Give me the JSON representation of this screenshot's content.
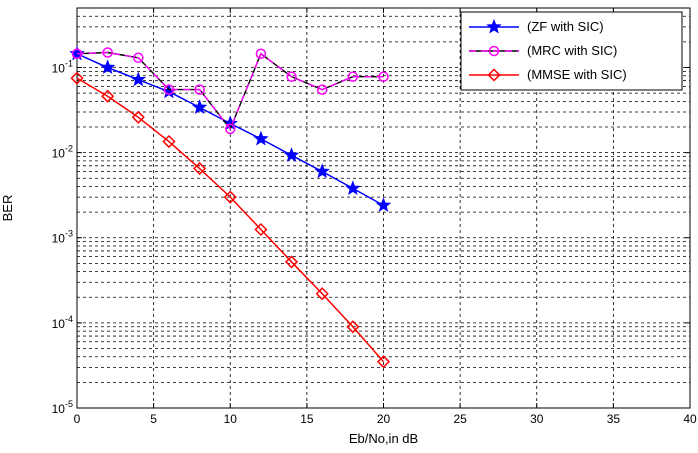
{
  "chart_data": {
    "type": "line",
    "title": "",
    "xlabel": "Eb/No,in dB",
    "ylabel": "BER",
    "xlim": [
      0,
      40
    ],
    "ylim": [
      1e-05,
      0.5
    ],
    "yscale": "log",
    "grid": true,
    "legend_position": "top-right",
    "x_ticks": [
      0,
      5,
      10,
      15,
      20,
      25,
      30,
      35,
      40
    ],
    "x_tick_labels": [
      "0",
      "5",
      "10",
      "15",
      "20",
      "25",
      "30",
      "35",
      "40"
    ],
    "y_ticks": [
      1e-05,
      0.0001,
      0.001,
      0.01,
      0.1
    ],
    "y_tick_labels": [
      {
        "base": "10",
        "exp": "-5"
      },
      {
        "base": "10",
        "exp": "-4"
      },
      {
        "base": "10",
        "exp": "-3"
      },
      {
        "base": "10",
        "exp": "-2"
      },
      {
        "base": "10",
        "exp": "-1"
      }
    ],
    "series": [
      {
        "name": "(ZF with SIC)",
        "color": "#0000ff",
        "line_style": "solid",
        "marker": "star",
        "x": [
          0,
          2,
          4,
          6,
          8,
          10,
          12,
          14,
          16,
          18,
          20
        ],
        "y": [
          0.145,
          0.1,
          0.072,
          0.052,
          0.034,
          0.022,
          0.0145,
          0.0093,
          0.006,
          0.0038,
          0.0024
        ]
      },
      {
        "name": "(MRC with SIC)",
        "color": "#ff00ff",
        "line_style": "dashed",
        "marker": "circle",
        "x": [
          0,
          2,
          4,
          6,
          8,
          10,
          12,
          14,
          16,
          18,
          20
        ],
        "y": [
          0.145,
          0.15,
          0.13,
          0.055,
          0.055,
          0.019,
          0.145,
          0.078,
          0.055,
          0.078,
          0.078
        ]
      },
      {
        "name": "(MMSE with SIC)",
        "color": "#ff0000",
        "line_style": "solid",
        "marker": "diamond",
        "x": [
          0,
          2,
          4,
          6,
          8,
          10,
          12,
          14,
          16,
          18,
          20
        ],
        "y": [
          0.075,
          0.046,
          0.026,
          0.0135,
          0.0065,
          0.003,
          0.00125,
          0.00052,
          0.00022,
          9e-05,
          3.5e-05
        ]
      }
    ]
  }
}
